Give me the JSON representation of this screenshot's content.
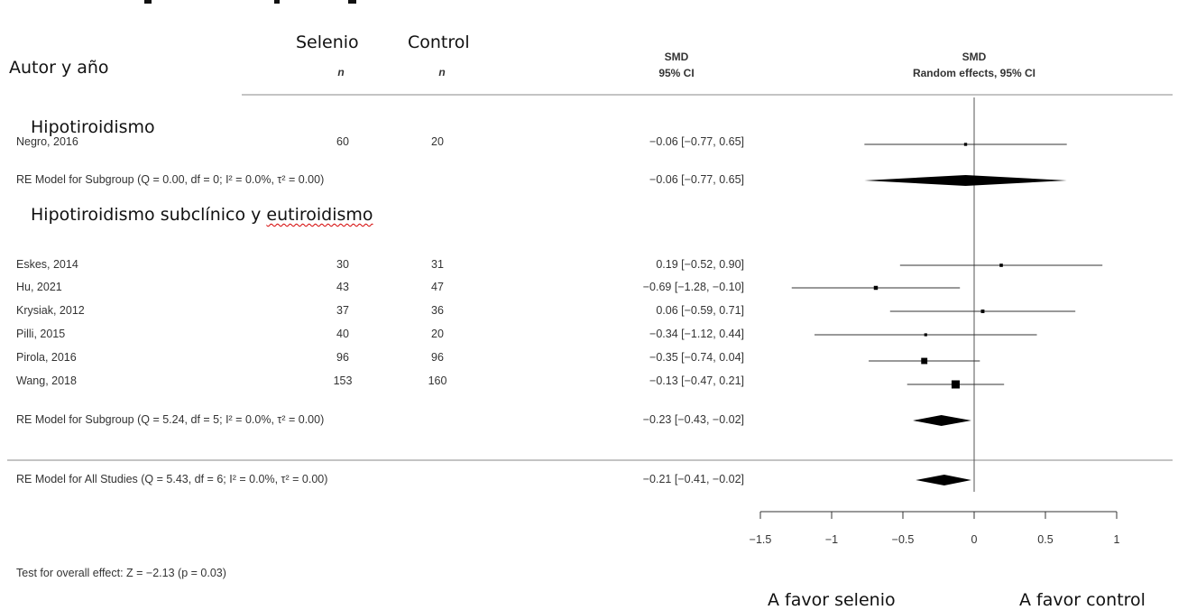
{
  "headers": {
    "author": "Autor y año",
    "selenio": "Selenio",
    "control": "Control",
    "n_label": "n",
    "smd": "SMD",
    "ci_label": "95% CI",
    "re_ci_label": "Random effects, 95% CI"
  },
  "groups": {
    "g1": "Hipotiroidismo",
    "g2_prefix": "Hipotiroidismo subclínico y ",
    "g2_misspelled": "eutiroidismo"
  },
  "rows": [
    {
      "label": "Negro, 2016",
      "n1": "60",
      "n2": "20",
      "ci": "−0.06 [−0.77,  0.65]"
    },
    {
      "label": "RE Model for Subgroup (Q = 0.00, df = 0; I² = 0.0%, τ² = 0.00)",
      "ci": "−0.06 [−0.77,  0.65]"
    },
    {
      "label": "Eskes, 2014",
      "n1": "30",
      "n2": "31",
      "ci": "0.19 [−0.52,  0.90]"
    },
    {
      "label": "Hu, 2021",
      "n1": "43",
      "n2": "47",
      "ci": "−0.69 [−1.28, −0.10]"
    },
    {
      "label": "Krysiak, 2012",
      "n1": "37",
      "n2": "36",
      "ci": "0.06 [−0.59,  0.71]"
    },
    {
      "label": "Pilli, 2015",
      "n1": "40",
      "n2": "20",
      "ci": "−0.34 [−1.12,  0.44]"
    },
    {
      "label": "Pirola, 2016",
      "n1": "96",
      "n2": "96",
      "ci": "−0.35 [−0.74,  0.04]"
    },
    {
      "label": "Wang, 2018",
      "n1": "153",
      "n2": "160",
      "ci": "−0.13 [−0.47,  0.21]"
    },
    {
      "label": "RE Model for Subgroup (Q = 5.24, df = 5; I² = 0.0%, τ² = 0.00)",
      "ci": "−0.23 [−0.43, −0.02]"
    },
    {
      "label": "RE Model for All Studies (Q = 5.43, df = 6; I² = 0.0%, τ² = 0.00)",
      "ci": "−0.21 [−0.41, −0.02]"
    }
  ],
  "footer": {
    "test_overall": "Test for overall effect: Z = −2.13 (p = 0.03)",
    "favor_left": "A favor selenio",
    "favor_right": "A favor control"
  },
  "chart_data": {
    "type": "forest",
    "xlim": [
      -1.5,
      1
    ],
    "x_ticks": [
      "−1.5",
      "−1",
      "−0.5",
      "0",
      "0.5",
      "1"
    ],
    "x_tick_values": [
      -1.5,
      -1,
      -0.5,
      0,
      0.5,
      1
    ],
    "studies": [
      {
        "name": "Negro, 2016",
        "est": -0.06,
        "lo": -0.77,
        "hi": 0.65,
        "weight": 1
      },
      {
        "name": "Eskes, 2014",
        "est": 0.19,
        "lo": -0.52,
        "hi": 0.9,
        "weight": 1.2
      },
      {
        "name": "Hu, 2021",
        "est": -0.69,
        "lo": -1.28,
        "hi": -0.1,
        "weight": 1.8
      },
      {
        "name": "Krysiak, 2012",
        "est": 0.06,
        "lo": -0.59,
        "hi": 0.71,
        "weight": 1.4
      },
      {
        "name": "Pilli, 2015",
        "est": -0.34,
        "lo": -1.12,
        "hi": 0.44,
        "weight": 0.9
      },
      {
        "name": "Pirola, 2016",
        "est": -0.35,
        "lo": -0.74,
        "hi": 0.04,
        "weight": 3.6
      },
      {
        "name": "Wang, 2018",
        "est": -0.13,
        "lo": -0.47,
        "hi": 0.21,
        "weight": 5.2
      }
    ],
    "summaries": [
      {
        "name": "RE Model for Subgroup Hipotiroidismo",
        "est": -0.06,
        "lo": -0.77,
        "hi": 0.65
      },
      {
        "name": "RE Model for Subgroup Hipotiroidismo subclínico y eutiroidismo",
        "est": -0.23,
        "lo": -0.43,
        "hi": -0.02
      },
      {
        "name": "RE Model for All Studies",
        "est": -0.21,
        "lo": -0.41,
        "hi": -0.02
      }
    ]
  }
}
